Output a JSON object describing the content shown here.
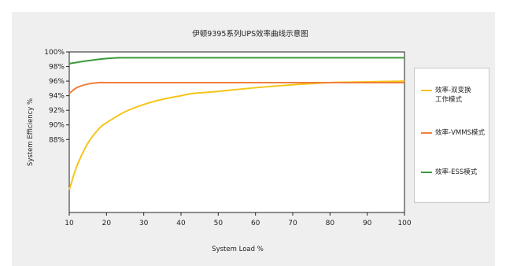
{
  "chart_data": {
    "type": "line",
    "title": "伊顿9395系列UPS效率曲线示意图",
    "xlabel": "System Load %",
    "ylabel": "System Efficiency  %",
    "x_ticks": [
      10,
      20,
      30,
      40,
      50,
      60,
      70,
      80,
      90,
      100
    ],
    "xlim": [
      10,
      100
    ],
    "y_ticks": [
      "100%",
      "98%",
      "96%",
      "94%",
      "92%",
      "90%",
      "88%"
    ],
    "y_tick_values": [
      100,
      98,
      96,
      94,
      92,
      90,
      88
    ],
    "ylim": [
      78,
      100
    ],
    "grid": false,
    "legend_position": "right",
    "series": [
      {
        "name": "效率-双变换\n工作模式",
        "color": "#f5c518",
        "x": [
          10,
          12,
          15,
          18,
          20,
          25,
          30,
          35,
          40,
          43,
          50,
          60,
          70,
          80,
          90,
          100
        ],
        "y": [
          81.1,
          84.3,
          87.5,
          89.5,
          90.3,
          91.8,
          92.8,
          93.5,
          94.0,
          94.3,
          94.6,
          95.1,
          95.5,
          95.8,
          95.9,
          96.0
        ]
      },
      {
        "name": "效率-VMMS模式",
        "color": "#f07f3c",
        "x": [
          10,
          12,
          15,
          18,
          20,
          25,
          100
        ],
        "y": [
          94.3,
          95.1,
          95.6,
          95.8,
          95.8,
          95.8,
          95.8
        ]
      },
      {
        "name": "效率-ESS模式",
        "color": "#3a9a3a",
        "x": [
          10,
          15,
          20,
          24,
          30,
          100
        ],
        "y": [
          98.4,
          98.8,
          99.1,
          99.2,
          99.2,
          99.2
        ]
      }
    ]
  }
}
